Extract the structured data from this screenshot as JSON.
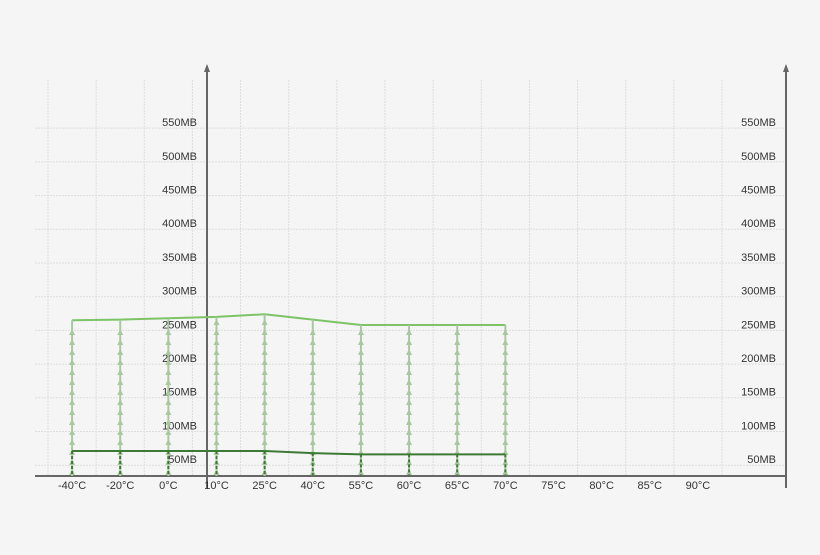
{
  "chart_data": {
    "type": "line",
    "categories": [
      "-40°C",
      "-20°C",
      "0°C",
      "10°C",
      "25°C",
      "40°C",
      "55°C",
      "60°C",
      "65°C",
      "70°C",
      "75°C",
      "80°C",
      "85°C",
      "90°C"
    ],
    "series": [
      {
        "color": "#7cc466",
        "values": [
          265,
          266,
          268,
          270,
          274,
          266,
          258,
          258,
          258,
          258,
          null,
          null,
          null,
          null
        ]
      },
      {
        "color": "#3d7a35",
        "values": [
          71,
          71,
          71,
          71,
          71,
          68,
          66,
          66,
          66,
          66,
          null,
          null,
          null,
          null
        ]
      }
    ],
    "ylim": [
      34,
      620
    ],
    "yticks": [
      {
        "value": 50,
        "label": "50MB"
      },
      {
        "value": 100,
        "label": "100MB"
      },
      {
        "value": 150,
        "label": "150MB"
      },
      {
        "value": 200,
        "label": "200MB"
      },
      {
        "value": 250,
        "label": "250MB"
      },
      {
        "value": 300,
        "label": "300MB"
      },
      {
        "value": 350,
        "label": "350MB"
      },
      {
        "value": 400,
        "label": "400MB"
      },
      {
        "value": 450,
        "label": "450MB"
      },
      {
        "value": 500,
        "label": "500MB"
      },
      {
        "value": 550,
        "label": "550MB"
      }
    ],
    "grid": true
  }
}
